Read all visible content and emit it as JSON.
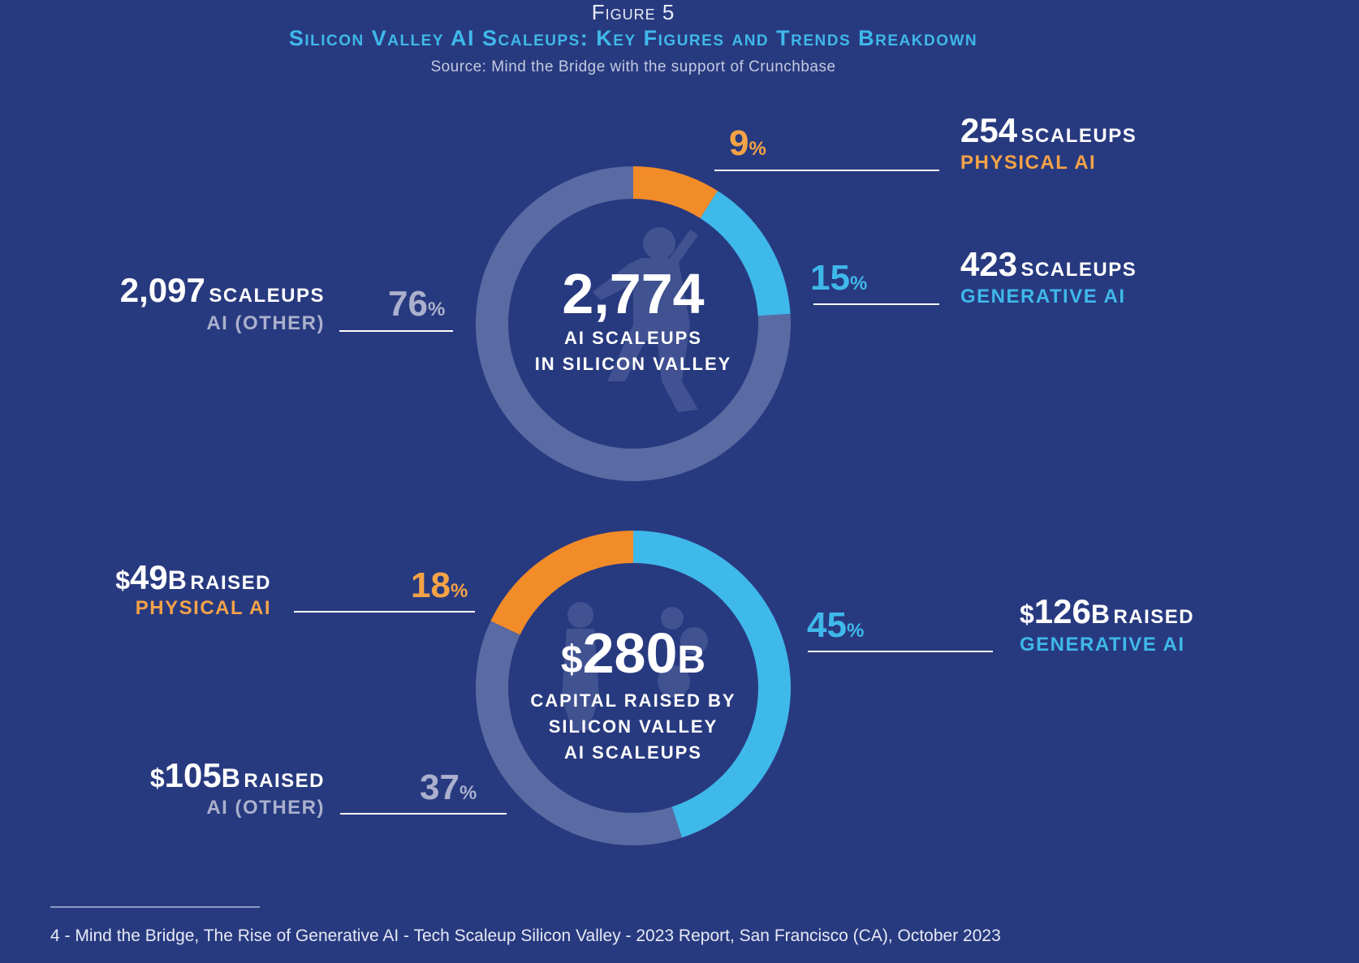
{
  "header": {
    "figure_label": "Figure 5",
    "title": "Silicon Valley AI Scaleups: Key Figures and Trends Breakdown",
    "source": "Source: Mind the Bridge with the support of Crunchbase"
  },
  "colors": {
    "physical": "#f28c28",
    "generative": "#3fb8ea",
    "other": "#5a6aa3",
    "background": "#283a7f"
  },
  "chart_data": [
    {
      "type": "pie",
      "title": "AI scaleups in Silicon Valley",
      "center": {
        "value": "2,774",
        "caption_1": "AI SCALEUPS",
        "caption_2": "IN SILICON VALLEY"
      },
      "slices": [
        {
          "name": "Physical AI",
          "value": 9,
          "pct_label": "9",
          "count": "254",
          "count_unit": "SCALEUPS",
          "category": "PHYSICAL AI"
        },
        {
          "name": "Generative AI",
          "value": 15,
          "pct_label": "15",
          "count": "423",
          "count_unit": "SCALEUPS",
          "category": "GENERATIVE AI"
        },
        {
          "name": "AI (Other)",
          "value": 76,
          "pct_label": "76",
          "count": "2,097",
          "count_unit": "SCALEUPS",
          "category": "AI (OTHER)"
        }
      ]
    },
    {
      "type": "pie",
      "title": "Capital raised by Silicon Valley AI scaleups",
      "center": {
        "value_prefix": "$",
        "value": "280",
        "value_suffix": "B",
        "caption_1": "CAPITAL RAISED BY",
        "caption_2": "SILICON VALLEY",
        "caption_3": "AI SCALEUPS"
      },
      "slices": [
        {
          "name": "Generative AI",
          "value": 45,
          "pct_label": "45",
          "amount_prefix": "$",
          "amount": "126",
          "amount_suffix": "B",
          "amount_unit": "RAISED",
          "category": "GENERATIVE AI"
        },
        {
          "name": "AI (Other)",
          "value": 37,
          "pct_label": "37",
          "amount_prefix": "$",
          "amount": "105",
          "amount_suffix": "B",
          "amount_unit": "RAISED",
          "category": "AI (OTHER)"
        },
        {
          "name": "Physical AI",
          "value": 18,
          "pct_label": "18",
          "amount_prefix": "$",
          "amount": "49",
          "amount_suffix": "B",
          "amount_unit": "RAISED",
          "category": "PHYSICAL AI"
        }
      ]
    }
  ],
  "pct_symbol": "%",
  "footnote": "4 - Mind the Bridge, The Rise of Generative AI - Tech Scaleup Silicon Valley - 2023 Report, San Francisco (CA), October 2023"
}
